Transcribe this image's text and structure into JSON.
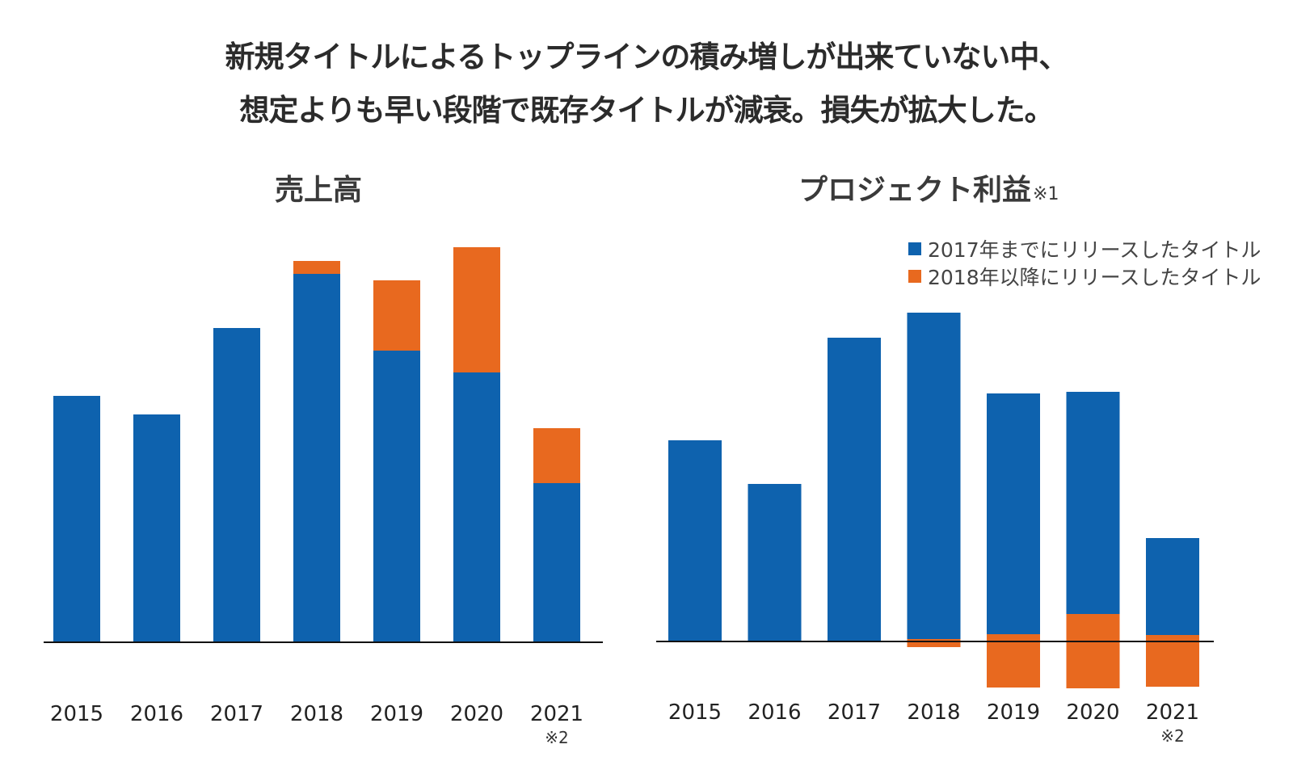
{
  "headline": {
    "line1": "新規タイトルによるトップラインの積み増しが出来ていない中、",
    "line2": "想定よりも早い段階で既存タイトルが減衰。損失が拡大した。"
  },
  "colors": {
    "pre2017": "#0e62ae",
    "post2018": "#e8691f",
    "axis": "#111111"
  },
  "legend": [
    {
      "label": "2017年までにリリースしたタイトル",
      "color": "#0e62ae"
    },
    {
      "label": "2018年以降にリリースしたタイトル",
      "color": "#e8691f"
    }
  ],
  "chart_data": [
    {
      "type": "bar",
      "stacked": true,
      "title": "売上高",
      "title_note": "",
      "xlabel": "",
      "ylabel": "",
      "unit": "relative (no axis scale shown)",
      "categories": [
        "2015",
        "2016",
        "2017",
        "2018",
        "2019",
        "2020",
        "2021"
      ],
      "category_notes": [
        "",
        "",
        "",
        "",
        "",
        "",
        "※2"
      ],
      "grid": false,
      "ylim": [
        0,
        500
      ],
      "series": [
        {
          "name": "2017年までにリリースしたタイトル",
          "values": [
            305,
            282,
            389,
            456,
            361,
            334,
            197
          ]
        },
        {
          "name": "2018年以降にリリースしたタイトル",
          "values": [
            0,
            0,
            0,
            16,
            87,
            155,
            68
          ]
        }
      ]
    },
    {
      "type": "bar",
      "stacked": true,
      "title": "プロジェクト利益",
      "title_note": "※1",
      "xlabel": "",
      "ylabel": "",
      "unit": "relative (no axis scale shown)",
      "categories": [
        "2015",
        "2016",
        "2017",
        "2018",
        "2019",
        "2020",
        "2021"
      ],
      "category_notes": [
        "",
        "",
        "",
        "",
        "",
        "",
        "※2"
      ],
      "grid": false,
      "ylim": [
        -70,
        420
      ],
      "legend_position": "top-right",
      "series": [
        {
          "name": "2017年までにリリースしたタイトル",
          "values": [
            249,
            195,
            376,
            404,
            298,
            275,
            120
          ],
          "base": [
            0,
            0,
            0,
            3,
            9,
            34,
            8
          ]
        },
        {
          "name": "2018年以降にリリースしたタイトル",
          "values": [
            0,
            0,
            0,
            -7,
            -48,
            -24,
            -48
          ],
          "range": [
            [
              0,
              0
            ],
            [
              0,
              0
            ],
            [
              0,
              0
            ],
            [
              3,
              -7
            ],
            [
              9,
              -57
            ],
            [
              34,
              -58
            ],
            [
              8,
              -56
            ]
          ]
        }
      ]
    }
  ]
}
